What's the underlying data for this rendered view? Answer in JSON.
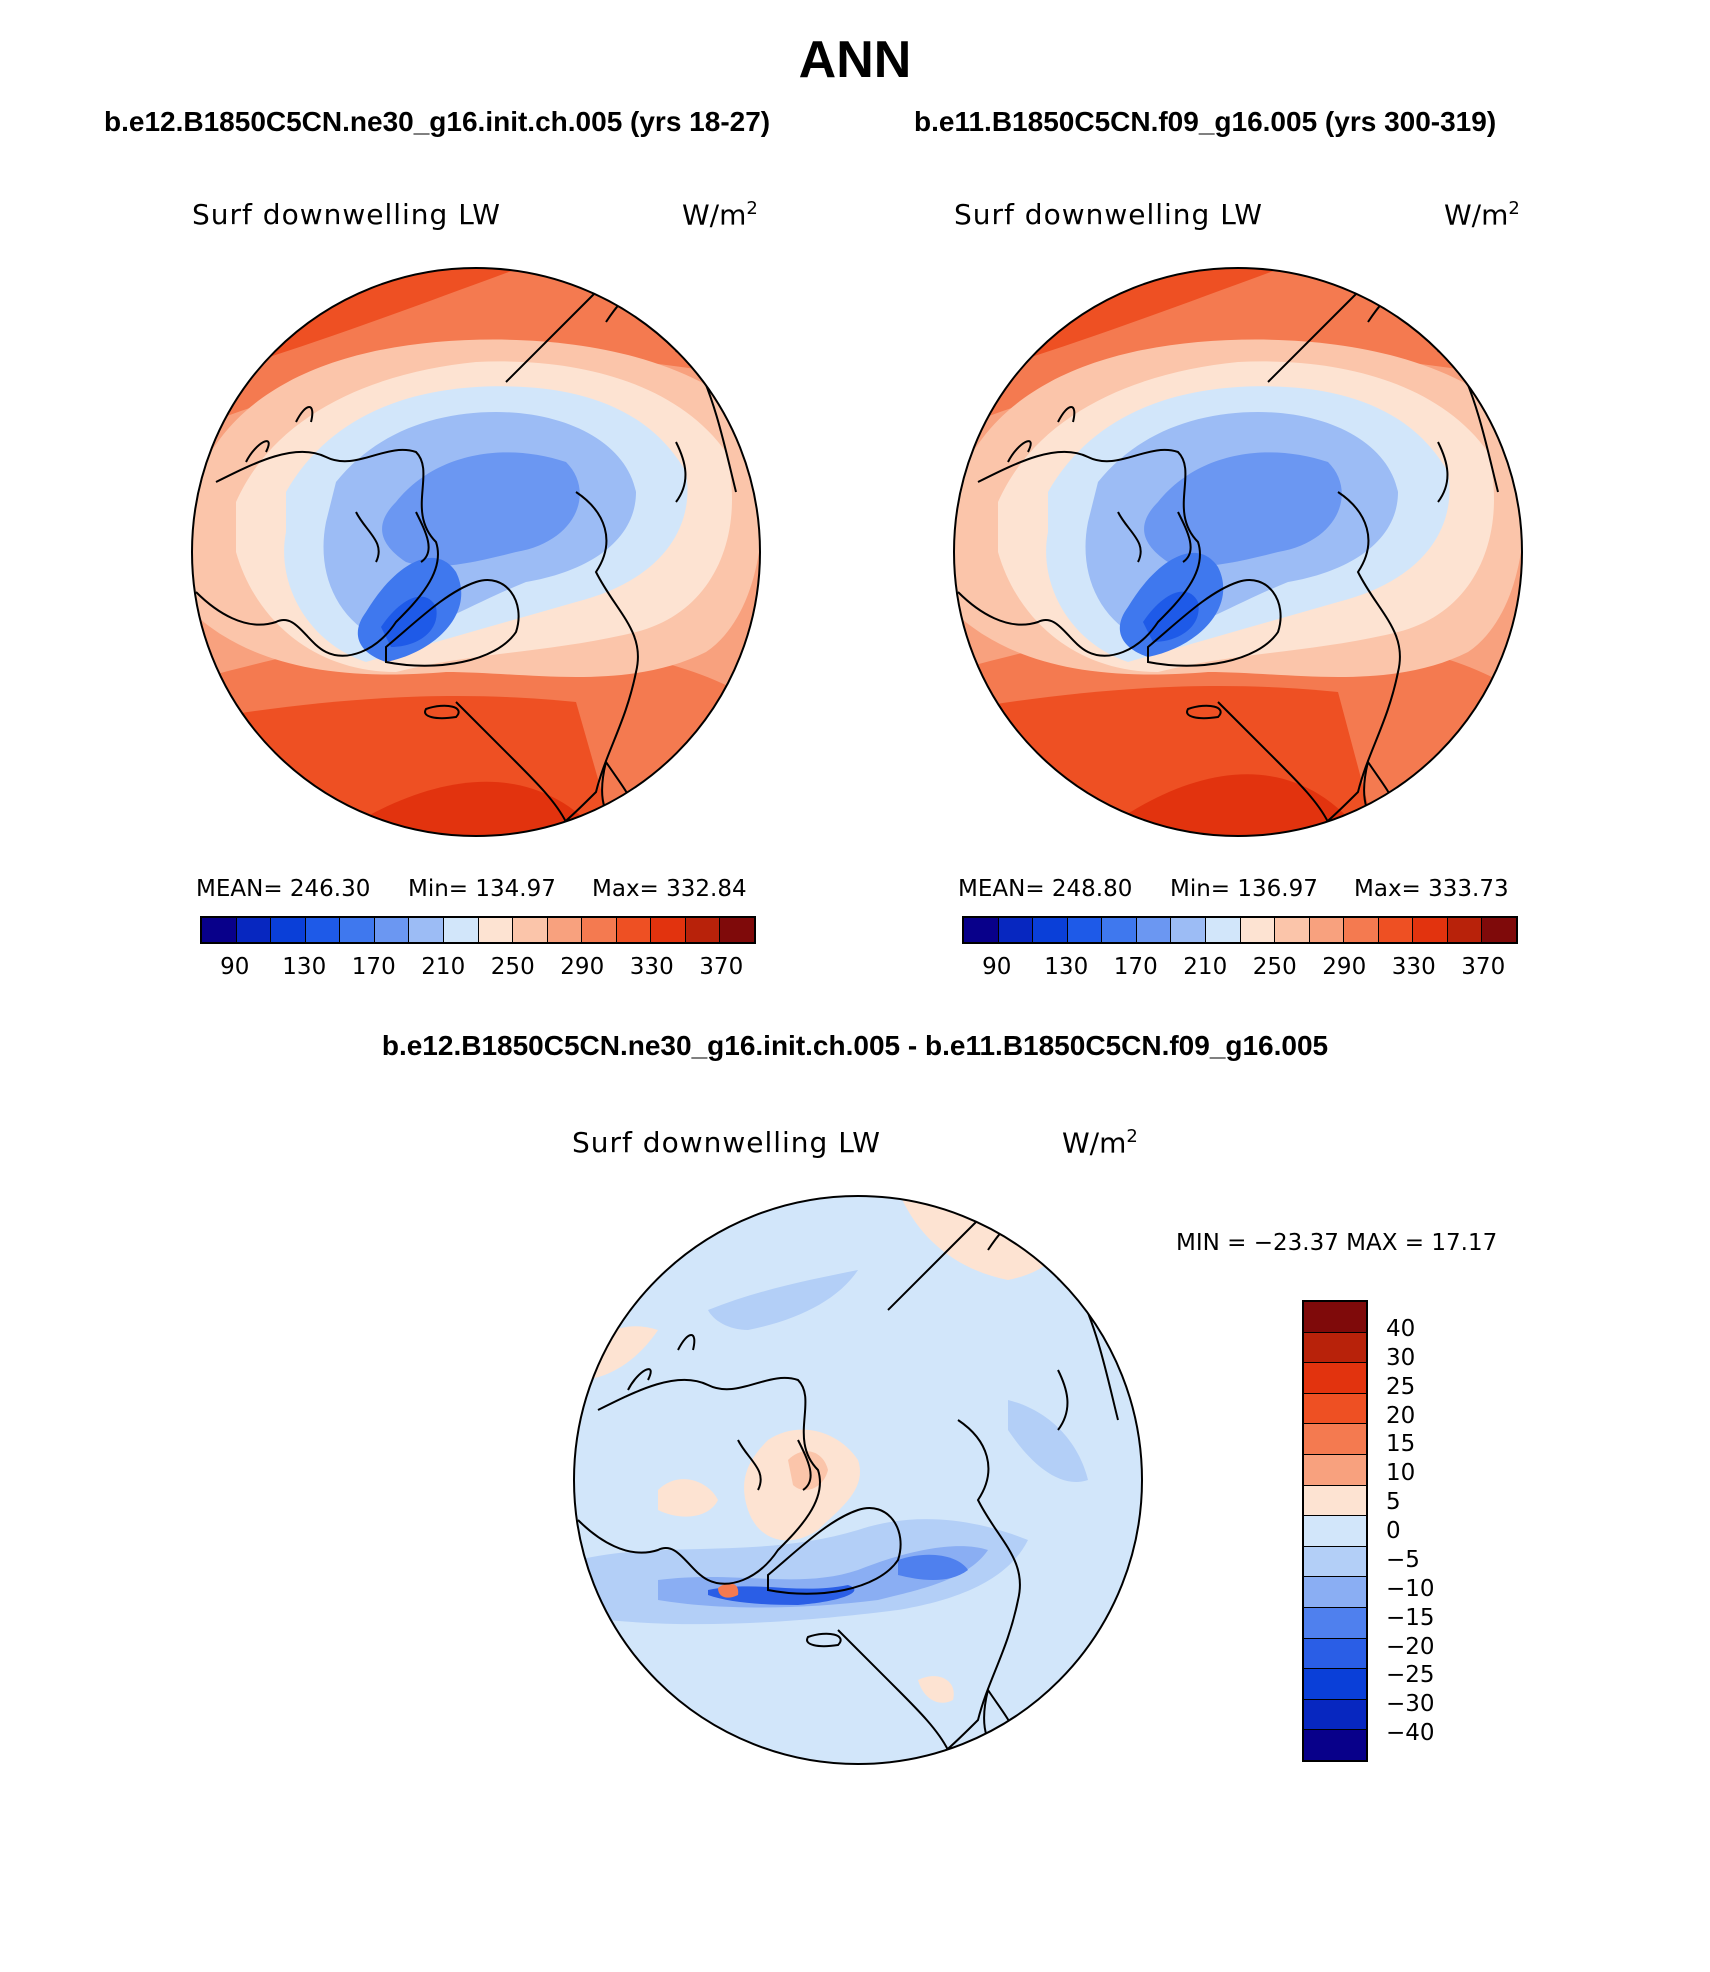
{
  "title": "ANN",
  "panels": [
    {
      "case": "b.e12.B1850C5CN.ne30_g16.init.ch.005 (yrs 18-27)",
      "variable": "Surf downwelling LW",
      "units": "W/m",
      "units_exp": "2",
      "stats": {
        "mean": "MEAN= 246.30",
        "min": "Min= 134.97",
        "max": "Max= 332.84"
      },
      "colorbar_ticks": [
        "90",
        "130",
        "170",
        "210",
        "250",
        "290",
        "330",
        "370"
      ]
    },
    {
      "case": "b.e11.B1850C5CN.f09_g16.005 (yrs 300-319)",
      "variable": "Surf downwelling LW",
      "units": "W/m",
      "units_exp": "2",
      "stats": {
        "mean": "MEAN= 248.80",
        "min": "Min= 136.97",
        "max": "Max= 333.73"
      },
      "colorbar_ticks": [
        "90",
        "130",
        "170",
        "210",
        "250",
        "290",
        "330",
        "370"
      ]
    }
  ],
  "difference": {
    "title": "b.e12.B1850C5CN.ne30_g16.init.ch.005 - b.e11.B1850C5CN.f09_g16.005",
    "variable": "Surf downwelling LW",
    "units": "W/m",
    "units_exp": "2",
    "minmax": "MIN = −23.37 MAX =   17.17",
    "colorbar_ticks": [
      "40",
      "30",
      "25",
      "20",
      "15",
      "10",
      "5",
      "0",
      "−5",
      "−10",
      "−15",
      "−20",
      "−25",
      "−30",
      "−40"
    ]
  },
  "colors": {
    "abs_scale": [
      "#08008a",
      "#0727c0",
      "#0a3fd8",
      "#1e5ae8",
      "#3f78ee",
      "#6b97f2",
      "#9cbcf5",
      "#d2e6fa",
      "#fde3d2",
      "#fbc5aa",
      "#f8a17e",
      "#f47a50",
      "#ee5023",
      "#e2330e",
      "#b8220a",
      "#7f0a0a"
    ],
    "diff_scale": [
      "#7f0a0a",
      "#b8220a",
      "#e2330e",
      "#ee5023",
      "#f47a50",
      "#f8a17e",
      "#fde3d2",
      "#d2e6fa",
      "#b3cff7",
      "#8aaef3",
      "#4f80ee",
      "#2a5ee6",
      "#0a3fd8",
      "#0727c0",
      "#08008a"
    ]
  }
}
